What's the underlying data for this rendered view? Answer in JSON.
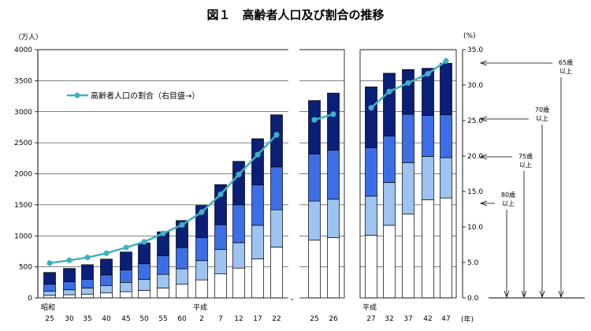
{
  "title": "図１　高齢者人口及び割合の推移",
  "left_unit": "（万人）",
  "right_unit": "(%)",
  "year_unit": "(年)",
  "era_labels": {
    "showa": "昭和",
    "heisei1": "平成",
    "heisei2": "平成"
  },
  "break_mark": "≈",
  "legend_label": "高齢者人口の割合（右目盛→）",
  "age_labels": [
    {
      "line1": "65歳",
      "line2": "以上"
    },
    {
      "line1": "70歳",
      "line2": "以上"
    },
    {
      "line1": "75歳",
      "line2": "以上"
    },
    {
      "line1": "80歳",
      "line2": "以上"
    }
  ],
  "colors": {
    "age80": "#ffffff",
    "age75_79": "#9dc3f0",
    "age70_74": "#3c6fe6",
    "age65_69": "#0a1f78",
    "line": "#3fb1c2",
    "axis": "#000000"
  },
  "chart_data": {
    "type": "bar",
    "stacked": true,
    "series_order_bottom_to_top": [
      "80+",
      "75-79",
      "70-74",
      "65-69"
    ],
    "left_axis": {
      "ylim": [
        0,
        4000
      ],
      "ticks": [
        "0",
        "500",
        "1000",
        "1500",
        "2000",
        "2500",
        "3000",
        "3500",
        "4000"
      ]
    },
    "right_axis": {
      "ylim": [
        0,
        35
      ],
      "ticks": [
        "0.0",
        "5.0",
        "10.0",
        "15.0",
        "20.0",
        "25.0",
        "30.0",
        "35.0"
      ]
    },
    "panels": [
      {
        "categories": [
          "25",
          "30",
          "35",
          "40",
          "45",
          "50",
          "55",
          "60",
          "2",
          "7",
          "12",
          "17",
          "22"
        ],
        "totals": [
          410,
          475,
          535,
          625,
          740,
          887,
          1065,
          1247,
          1490,
          1825,
          2200,
          2565,
          2950
        ],
        "segments": {
          "80+": [
            40,
            50,
            60,
            80,
            100,
            120,
            160,
            220,
            290,
            390,
            480,
            630,
            820
          ],
          "75-79": [
            70,
            80,
            100,
            120,
            150,
            180,
            220,
            250,
            310,
            390,
            410,
            540,
            600
          ],
          "70-74": [
            110,
            130,
            140,
            170,
            200,
            250,
            300,
            340,
            370,
            400,
            610,
            650,
            690
          ],
          "65-69": [
            190,
            215,
            235,
            255,
            290,
            337,
            385,
            437,
            520,
            645,
            700,
            745,
            840
          ]
        },
        "ratio": [
          4.9,
          5.3,
          5.7,
          6.3,
          7.1,
          7.9,
          9.1,
          10.3,
          12.1,
          14.6,
          17.4,
          20.2,
          23.0
        ]
      },
      {
        "categories": [
          "25",
          "26"
        ],
        "totals": [
          3180,
          3300
        ],
        "segments": {
          "80+": [
            930,
            970
          ],
          "75-79": [
            630,
            620
          ],
          "70-74": [
            760,
            790
          ],
          "65-69": [
            860,
            920
          ]
        },
        "ratio": [
          25.1,
          25.9
        ]
      },
      {
        "categories": [
          "27",
          "32",
          "37",
          "42",
          "47"
        ],
        "totals": [
          3400,
          3620,
          3680,
          3700,
          3780
        ],
        "segments": {
          "80+": [
            1010,
            1170,
            1350,
            1580,
            1610
          ],
          "75-79": [
            630,
            690,
            830,
            700,
            650
          ],
          "70-74": [
            780,
            750,
            780,
            660,
            690
          ],
          "65-69": [
            980,
            1010,
            720,
            760,
            830
          ]
        },
        "ratio": [
          26.8,
          29.1,
          30.3,
          31.6,
          33.4
        ]
      }
    ]
  }
}
